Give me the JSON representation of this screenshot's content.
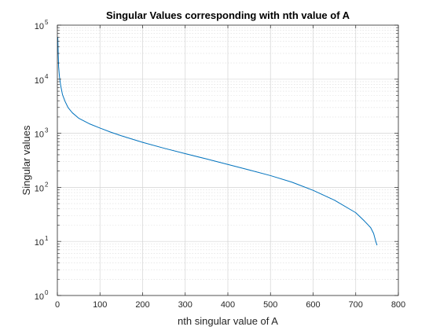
{
  "chart_data": {
    "type": "line",
    "title": "Singular Values corresponding with nth value of A",
    "xlabel": "nth singular value of A",
    "ylabel": "Singular values",
    "xlim": [
      0,
      800
    ],
    "ylim": [
      1,
      100000
    ],
    "yscale": "log",
    "grid": true,
    "minor_grid_y": true,
    "x_ticks": [
      "0",
      "100",
      "200",
      "300",
      "400",
      "500",
      "600",
      "700",
      "800"
    ],
    "y_ticks": [
      {
        "base": "10",
        "exp": "0"
      },
      {
        "base": "10",
        "exp": "1"
      },
      {
        "base": "10",
        "exp": "2"
      },
      {
        "base": "10",
        "exp": "3"
      },
      {
        "base": "10",
        "exp": "4"
      },
      {
        "base": "10",
        "exp": "5"
      }
    ],
    "series": [
      {
        "color": "#0072bd",
        "x": [
          1,
          2,
          3,
          5,
          8,
          12,
          18,
          25,
          35,
          50,
          75,
          100,
          125,
          150,
          200,
          250,
          300,
          350,
          400,
          450,
          500,
          550,
          600,
          650,
          700,
          720,
          735,
          742,
          747,
          750
        ],
        "y": [
          60000,
          30000,
          17000,
          11000,
          7500,
          5200,
          3900,
          3000,
          2400,
          1900,
          1500,
          1250,
          1050,
          900,
          680,
          530,
          420,
          335,
          265,
          210,
          165,
          125,
          88,
          58,
          34,
          24,
          18,
          14,
          10,
          8.5
        ]
      }
    ]
  }
}
